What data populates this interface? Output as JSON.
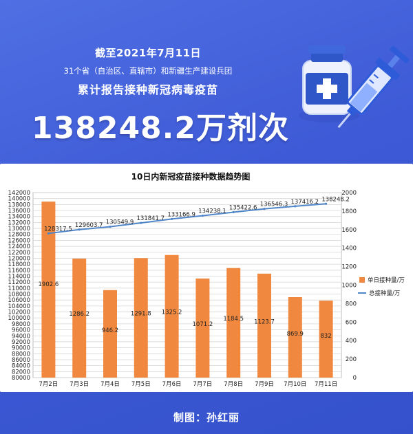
{
  "header": {
    "date_line": "截至2021年7月11日",
    "scope_line": "31个省（自治区、直辖市）和新疆生产建设兵团",
    "subtitle": "累计报告接种新冠病毒疫苗",
    "total_value": "138248.2",
    "total_unit": "万剂次"
  },
  "illustration": {
    "icons": [
      "vaccine-bottle-icon",
      "syringe-icon"
    ],
    "colors": {
      "bottle_cap": "#2f57c8",
      "bottle_body": "#e8eefc",
      "syringe": "#2e5bd8",
      "light": "#8fb0ff"
    }
  },
  "credit": "制图：孙红丽",
  "colors": {
    "background": "#3e5ad6",
    "bar": "#f0893f",
    "line": "#4f86c9",
    "grid": "#d6d6d6"
  },
  "chart_data": {
    "type": "bar",
    "title": "10日内新冠疫苗接种数据趋势图",
    "categories": [
      "7月2日",
      "7月3日",
      "7月4日",
      "7月5日",
      "7月6日",
      "7月7日",
      "7月8日",
      "7月9日",
      "7月10日",
      "7月11日"
    ],
    "series": [
      {
        "name": "单日接种量/万",
        "type": "bar",
        "axis": "right",
        "values": [
          1902.6,
          1286.2,
          946.2,
          1291.8,
          1325.2,
          1071.2,
          1184.5,
          1123.7,
          869.9,
          832
        ],
        "labels": [
          "1902.6",
          "1286.2",
          "946.2",
          "1291.8",
          "1325.2",
          "1071.2",
          "1184.5",
          "1123.7",
          "869.9",
          "832"
        ]
      },
      {
        "name": "总接种量/万",
        "type": "line",
        "axis": "left",
        "values": [
          128317.5,
          129603.7,
          130549.9,
          131841.7,
          133166.9,
          134238.1,
          135422.6,
          136546.3,
          137416.2,
          138248.2
        ],
        "labels": [
          "128317.5",
          "129603.7",
          "130549.9",
          "131841.7",
          "133166.9",
          "134238.1",
          "135422.6",
          "136546.3",
          "137416.2",
          "138248.2"
        ]
      }
    ],
    "left_axis": {
      "ylim": [
        80000,
        142000
      ],
      "ticks": [
        "80000",
        "82000",
        "84000",
        "86000",
        "88000",
        "90000",
        "92000",
        "94000",
        "96000",
        "98000",
        "100000",
        "102000",
        "104000",
        "106000",
        "108000",
        "110000",
        "112000",
        "114000",
        "116000",
        "118000",
        "120000",
        "122000",
        "124000",
        "126000",
        "128000",
        "130000",
        "132000",
        "134000",
        "136000",
        "138000",
        "140000",
        "142000"
      ]
    },
    "right_axis": {
      "ylim": [
        0,
        2000
      ],
      "ticks": [
        "0",
        "200",
        "400",
        "600",
        "800",
        "1000",
        "1200",
        "1400",
        "1600",
        "1800",
        "2000"
      ]
    },
    "grid": true,
    "legend_position": "right"
  }
}
